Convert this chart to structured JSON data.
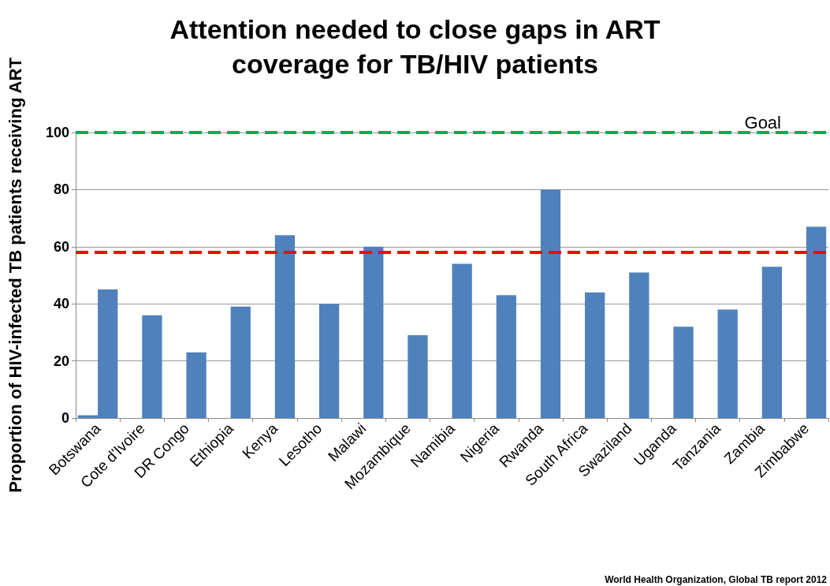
{
  "chart_data": {
    "type": "bar",
    "title": "Attention needed to close gaps in ART\ncoverage for TB/HIV patients",
    "ylabel": "Proportion of HIV-infected TB patients receiving ART",
    "annotations": [
      "World Health Organization, Global TB report 2012"
    ],
    "categories": [
      "Botswana",
      "Cote d'Ivoire",
      "DR Congo",
      "Ethiopia",
      "Kenya",
      "Lesotho",
      "Malawi",
      "Mozambique",
      "Namibia",
      "Nigeria",
      "Rwanda",
      "South Africa",
      "Swaziland",
      "Uganda",
      "Tanzania",
      "Zambia",
      "Zimbabwe"
    ],
    "series": [
      {
        "color": "#4f81bd",
        "values": [
          1,
          null,
          null,
          null,
          null,
          null,
          null,
          null,
          null,
          null,
          null,
          null,
          null,
          null,
          null,
          null,
          null
        ]
      },
      {
        "color": "#4f81bd",
        "values": [
          45,
          36,
          23,
          39,
          64,
          40,
          60,
          29,
          54,
          43,
          80,
          44,
          51,
          32,
          38,
          53,
          67
        ]
      }
    ],
    "ylim": [
      0,
      100
    ],
    "yticks": [
      0,
      20,
      40,
      60,
      80,
      100
    ],
    "grid": "y",
    "ref_lines": [
      {
        "axis": "y",
        "value": 100,
        "label": "Goal",
        "color": "#00b050",
        "line_style": "dashed"
      },
      {
        "axis": "y",
        "value": 58,
        "label": null,
        "color": "#ff0000",
        "line_style": "dashed"
      }
    ]
  }
}
